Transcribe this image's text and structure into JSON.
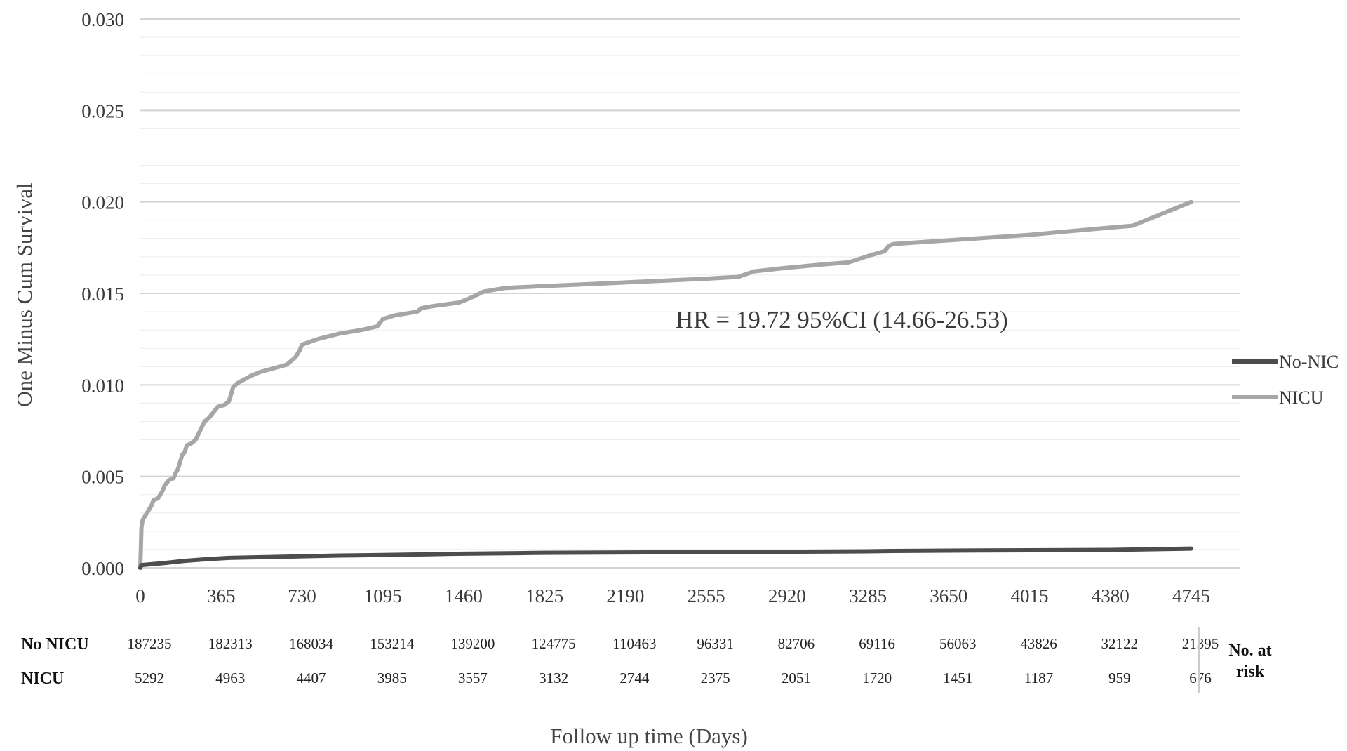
{
  "chart_data": {
    "type": "line",
    "title": "",
    "xlabel": "Follow up time (Days)",
    "ylabel": "One Minus Cum Survival",
    "xlim": [
      0,
      5100
    ],
    "ylim": [
      0,
      0.03
    ],
    "x_ticks": [
      0,
      365,
      730,
      1095,
      1460,
      1825,
      2190,
      2555,
      2920,
      3285,
      3650,
      4015,
      4380,
      4745
    ],
    "y_ticks": [
      "0.000",
      "0.005",
      "0.010",
      "0.015",
      "0.020",
      "0.025",
      "0.030"
    ],
    "grid": "horizontal major and minor",
    "legend_position": "right",
    "annotation": "HR = 19.72 95%CI (14.66-26.53)",
    "series": [
      {
        "name": "No-NIC",
        "color": "#4d4d4d",
        "points": [
          [
            0,
            0
          ],
          [
            5,
            0.00015
          ],
          [
            100,
            0.00025
          ],
          [
            200,
            0.00038
          ],
          [
            300,
            0.00047
          ],
          [
            400,
            0.00054
          ],
          [
            550,
            0.00058
          ],
          [
            730,
            0.00063
          ],
          [
            900,
            0.00067
          ],
          [
            1095,
            0.0007
          ],
          [
            1300,
            0.00074
          ],
          [
            1460,
            0.00077
          ],
          [
            1700,
            0.0008
          ],
          [
            1825,
            0.00082
          ],
          [
            2190,
            0.00084
          ],
          [
            2555,
            0.00086
          ],
          [
            2920,
            0.00088
          ],
          [
            3285,
            0.0009
          ],
          [
            3400,
            0.00092
          ],
          [
            3650,
            0.00094
          ],
          [
            4015,
            0.00096
          ],
          [
            4380,
            0.00098
          ],
          [
            4745,
            0.00105
          ]
        ]
      },
      {
        "name": "NICU",
        "color": "#a6a6a6",
        "points": [
          [
            0,
            0
          ],
          [
            5,
            0.0022
          ],
          [
            10,
            0.0026
          ],
          [
            30,
            0.003
          ],
          [
            50,
            0.0034
          ],
          [
            60,
            0.0037
          ],
          [
            80,
            0.0038
          ],
          [
            100,
            0.0042
          ],
          [
            110,
            0.0045
          ],
          [
            130,
            0.0048
          ],
          [
            150,
            0.0049
          ],
          [
            160,
            0.0052
          ],
          [
            170,
            0.0054
          ],
          [
            180,
            0.0058
          ],
          [
            190,
            0.0062
          ],
          [
            200,
            0.0063
          ],
          [
            210,
            0.0067
          ],
          [
            230,
            0.0068
          ],
          [
            250,
            0.007
          ],
          [
            270,
            0.0075
          ],
          [
            290,
            0.008
          ],
          [
            310,
            0.0082
          ],
          [
            330,
            0.0085
          ],
          [
            350,
            0.0088
          ],
          [
            380,
            0.0089
          ],
          [
            400,
            0.0091
          ],
          [
            420,
            0.0099
          ],
          [
            440,
            0.0101
          ],
          [
            470,
            0.0103
          ],
          [
            500,
            0.0105
          ],
          [
            540,
            0.0107
          ],
          [
            600,
            0.0109
          ],
          [
            660,
            0.0111
          ],
          [
            700,
            0.0115
          ],
          [
            720,
            0.0119
          ],
          [
            730,
            0.0122
          ],
          [
            800,
            0.0125
          ],
          [
            900,
            0.0128
          ],
          [
            1000,
            0.013
          ],
          [
            1070,
            0.0132
          ],
          [
            1095,
            0.0136
          ],
          [
            1150,
            0.0138
          ],
          [
            1250,
            0.014
          ],
          [
            1270,
            0.0142
          ],
          [
            1320,
            0.0143
          ],
          [
            1440,
            0.0145
          ],
          [
            1500,
            0.0148
          ],
          [
            1550,
            0.0151
          ],
          [
            1650,
            0.0153
          ],
          [
            1825,
            0.0154
          ],
          [
            2190,
            0.0156
          ],
          [
            2555,
            0.0158
          ],
          [
            2700,
            0.0159
          ],
          [
            2770,
            0.0162
          ],
          [
            2920,
            0.0164
          ],
          [
            3100,
            0.0166
          ],
          [
            3200,
            0.0167
          ],
          [
            3300,
            0.0171
          ],
          [
            3360,
            0.0173
          ],
          [
            3380,
            0.0176
          ],
          [
            3400,
            0.0177
          ],
          [
            3650,
            0.0179
          ],
          [
            4015,
            0.0182
          ],
          [
            4380,
            0.0186
          ],
          [
            4480,
            0.0187
          ],
          [
            4745,
            0.02
          ]
        ]
      }
    ],
    "risk_table": {
      "title": "No. at risk",
      "rows": [
        {
          "label": "No NICU",
          "values": [
            "187235",
            "182313",
            "168034",
            "153214",
            "139200",
            "124775",
            "110463",
            "96331",
            "82706",
            "69116",
            "56063",
            "43826",
            "32122",
            "21395"
          ]
        },
        {
          "label": "NICU",
          "values": [
            "5292",
            "4963",
            "4407",
            "3985",
            "3557",
            "3132",
            "2744",
            "2375",
            "2051",
            "1720",
            "1451",
            "1187",
            "959",
            "676"
          ]
        }
      ]
    }
  }
}
